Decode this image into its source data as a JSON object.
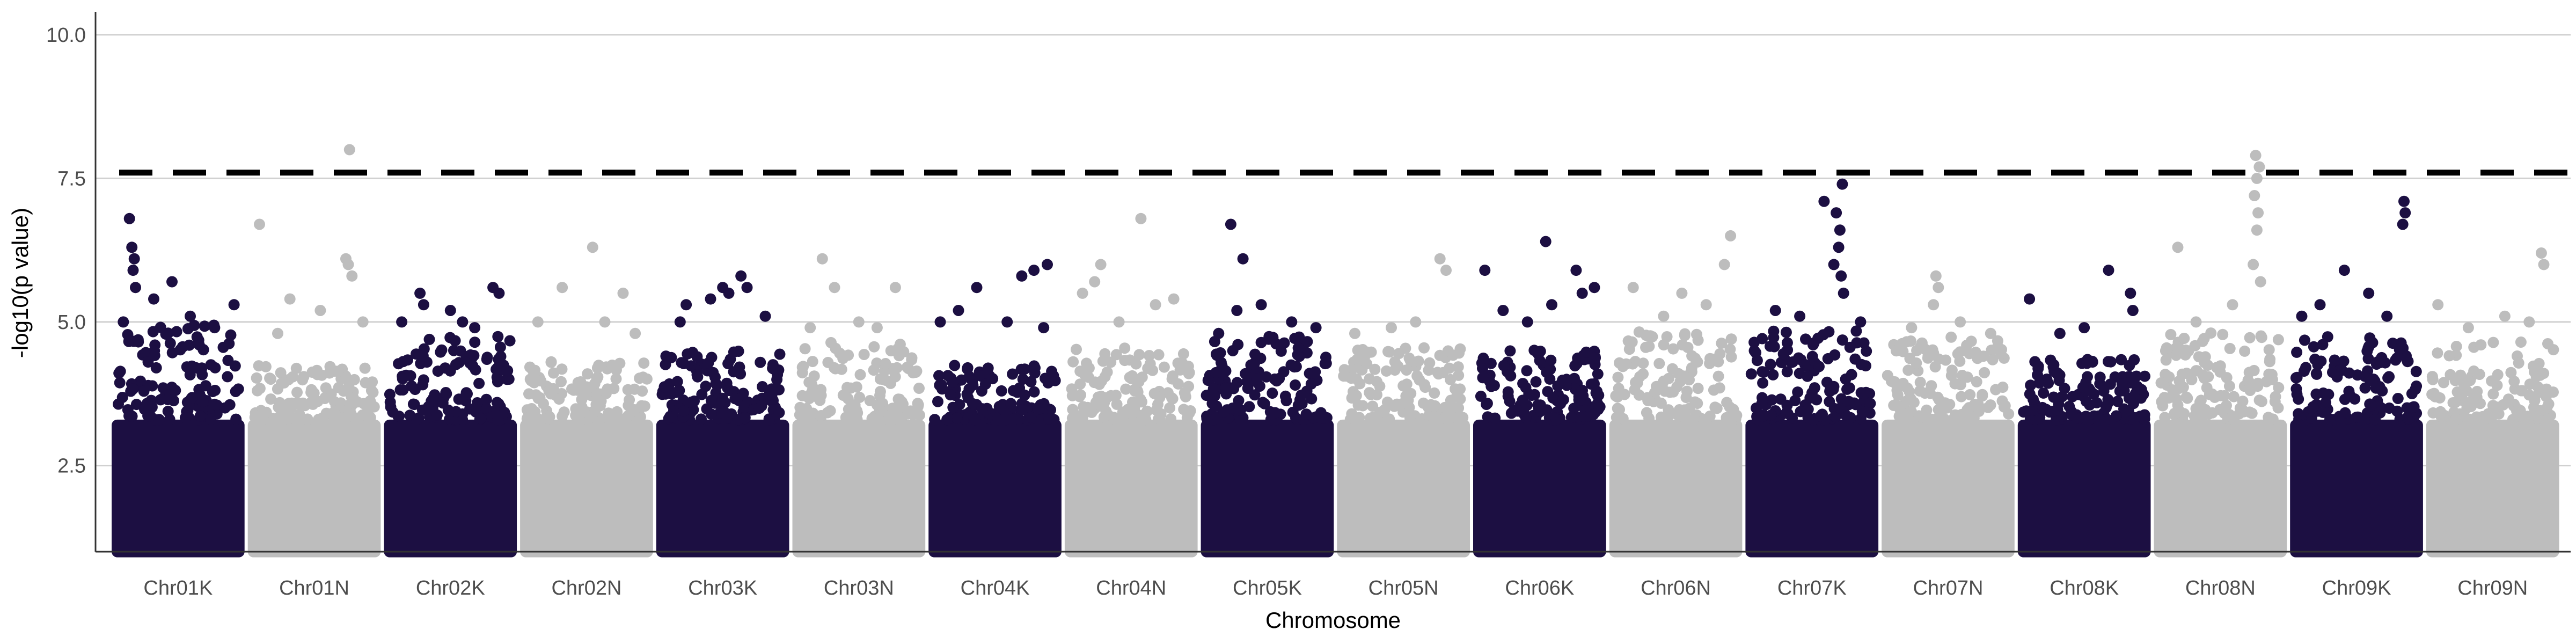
{
  "chart_data": {
    "type": "scatter",
    "subtype": "manhattan",
    "title": "",
    "xlabel": "Chromosome",
    "ylabel": "-log10(p value)",
    "ylim": [
      1.0,
      10.4
    ],
    "y_ticks": [
      2.5,
      5.0,
      7.5,
      10.0
    ],
    "y_tick_labels": [
      "2.5",
      "5.0",
      "7.5",
      "10.0"
    ],
    "grid": "horizontal major lines",
    "legend": "none",
    "colors": {
      "odd_chromosome": "#1c0f42",
      "even_chromosome": "#bdbdbd",
      "threshold": "#000000"
    },
    "threshold": 7.6,
    "threshold_style": "dashed",
    "categories": [
      "Chr01K",
      "Chr01N",
      "Chr02K",
      "Chr02N",
      "Chr03K",
      "Chr03N",
      "Chr04K",
      "Chr04N",
      "Chr05K",
      "Chr05N",
      "Chr06K",
      "Chr06N",
      "Chr07K",
      "Chr07N",
      "Chr08K",
      "Chr08N",
      "Chr09K",
      "Chr09N"
    ],
    "series": [
      {
        "category": "Chr01K",
        "color": "#1c0f42",
        "dense_top": 4.6,
        "points": [
          [
            0.1,
            6.8
          ],
          [
            0.12,
            6.3
          ],
          [
            0.14,
            6.1
          ],
          [
            0.13,
            5.9
          ],
          [
            0.15,
            5.6
          ],
          [
            0.45,
            5.7
          ],
          [
            0.3,
            5.4
          ],
          [
            0.96,
            5.3
          ],
          [
            0.6,
            5.1
          ],
          [
            0.05,
            5.0
          ],
          [
            0.8,
            4.9
          ]
        ]
      },
      {
        "category": "Chr01N",
        "color": "#bdbdbd",
        "dense_top": 3.9,
        "points": [
          [
            0.05,
            6.7
          ],
          [
            0.79,
            8.0
          ],
          [
            0.76,
            6.1
          ],
          [
            0.78,
            6.0
          ],
          [
            0.81,
            5.8
          ],
          [
            0.3,
            5.4
          ],
          [
            0.55,
            5.2
          ],
          [
            0.9,
            5.0
          ],
          [
            0.2,
            4.8
          ]
        ]
      },
      {
        "category": "Chr02K",
        "color": "#1c0f42",
        "dense_top": 4.4,
        "points": [
          [
            0.85,
            5.6
          ],
          [
            0.9,
            5.5
          ],
          [
            0.25,
            5.5
          ],
          [
            0.28,
            5.3
          ],
          [
            0.6,
            5.0
          ],
          [
            0.5,
            5.2
          ],
          [
            0.1,
            5.0
          ],
          [
            0.7,
            4.9
          ]
        ]
      },
      {
        "category": "Chr02N",
        "color": "#bdbdbd",
        "dense_top": 4.0,
        "points": [
          [
            0.55,
            6.3
          ],
          [
            0.3,
            5.6
          ],
          [
            0.8,
            5.5
          ],
          [
            0.1,
            5.0
          ],
          [
            0.65,
            5.0
          ],
          [
            0.9,
            4.8
          ]
        ]
      },
      {
        "category": "Chr03K",
        "color": "#1c0f42",
        "dense_top": 4.2,
        "points": [
          [
            0.65,
            5.8
          ],
          [
            0.7,
            5.6
          ],
          [
            0.5,
            5.6
          ],
          [
            0.55,
            5.5
          ],
          [
            0.4,
            5.4
          ],
          [
            0.2,
            5.3
          ],
          [
            0.85,
            5.1
          ],
          [
            0.15,
            5.0
          ]
        ]
      },
      {
        "category": "Chr03N",
        "color": "#bdbdbd",
        "dense_top": 4.3,
        "points": [
          [
            0.2,
            6.1
          ],
          [
            0.3,
            5.6
          ],
          [
            0.8,
            5.6
          ],
          [
            0.5,
            5.0
          ],
          [
            0.1,
            4.9
          ],
          [
            0.65,
            4.9
          ]
        ]
      },
      {
        "category": "Chr04K",
        "color": "#1c0f42",
        "dense_top": 3.9,
        "points": [
          [
            0.93,
            6.0
          ],
          [
            0.82,
            5.9
          ],
          [
            0.72,
            5.8
          ],
          [
            0.35,
            5.6
          ],
          [
            0.2,
            5.2
          ],
          [
            0.05,
            5.0
          ],
          [
            0.6,
            5.0
          ],
          [
            0.9,
            4.9
          ]
        ]
      },
      {
        "category": "Chr04N",
        "color": "#bdbdbd",
        "dense_top": 4.2,
        "points": [
          [
            0.58,
            6.8
          ],
          [
            0.25,
            6.0
          ],
          [
            0.2,
            5.7
          ],
          [
            0.1,
            5.5
          ],
          [
            0.7,
            5.3
          ],
          [
            0.85,
            5.4
          ],
          [
            0.4,
            5.0
          ]
        ]
      },
      {
        "category": "Chr05K",
        "color": "#1c0f42",
        "dense_top": 4.4,
        "points": [
          [
            0.2,
            6.7
          ],
          [
            0.3,
            6.1
          ],
          [
            0.45,
            5.3
          ],
          [
            0.25,
            5.2
          ],
          [
            0.7,
            5.0
          ],
          [
            0.9,
            4.9
          ],
          [
            0.1,
            4.8
          ]
        ]
      },
      {
        "category": "Chr05N",
        "color": "#bdbdbd",
        "dense_top": 4.2,
        "points": [
          [
            0.8,
            6.1
          ],
          [
            0.85,
            5.9
          ],
          [
            0.6,
            5.0
          ],
          [
            0.4,
            4.9
          ],
          [
            0.1,
            4.8
          ]
        ]
      },
      {
        "category": "Chr06K",
        "color": "#1c0f42",
        "dense_top": 4.2,
        "points": [
          [
            0.55,
            6.4
          ],
          [
            0.8,
            5.9
          ],
          [
            0.95,
            5.6
          ],
          [
            0.05,
            5.9
          ],
          [
            0.85,
            5.5
          ],
          [
            0.6,
            5.3
          ],
          [
            0.2,
            5.2
          ],
          [
            0.4,
            5.0
          ]
        ]
      },
      {
        "category": "Chr06N",
        "color": "#bdbdbd",
        "dense_top": 4.5,
        "points": [
          [
            0.95,
            6.5
          ],
          [
            0.9,
            6.0
          ],
          [
            0.15,
            5.6
          ],
          [
            0.55,
            5.5
          ],
          [
            0.75,
            5.3
          ],
          [
            0.4,
            5.1
          ]
        ]
      },
      {
        "category": "Chr07K",
        "color": "#1c0f42",
        "dense_top": 4.5,
        "points": [
          [
            0.75,
            7.4
          ],
          [
            0.6,
            7.1
          ],
          [
            0.7,
            6.9
          ],
          [
            0.73,
            6.6
          ],
          [
            0.72,
            6.3
          ],
          [
            0.68,
            6.0
          ],
          [
            0.74,
            5.8
          ],
          [
            0.76,
            5.5
          ],
          [
            0.2,
            5.2
          ],
          [
            0.4,
            5.1
          ],
          [
            0.9,
            5.0
          ]
        ]
      },
      {
        "category": "Chr07N",
        "color": "#bdbdbd",
        "dense_top": 4.4,
        "points": [
          [
            0.4,
            5.8
          ],
          [
            0.42,
            5.6
          ],
          [
            0.38,
            5.3
          ],
          [
            0.6,
            5.0
          ],
          [
            0.2,
            4.9
          ],
          [
            0.85,
            4.8
          ]
        ]
      },
      {
        "category": "Chr08K",
        "color": "#1c0f42",
        "dense_top": 4.0,
        "points": [
          [
            0.7,
            5.9
          ],
          [
            0.05,
            5.4
          ],
          [
            0.88,
            5.5
          ],
          [
            0.9,
            5.2
          ],
          [
            0.5,
            4.9
          ],
          [
            0.3,
            4.8
          ]
        ]
      },
      {
        "category": "Chr08N",
        "color": "#bdbdbd",
        "dense_top": 4.5,
        "points": [
          [
            0.79,
            7.9
          ],
          [
            0.82,
            7.7
          ],
          [
            0.8,
            7.5
          ],
          [
            0.78,
            7.2
          ],
          [
            0.81,
            6.9
          ],
          [
            0.8,
            6.6
          ],
          [
            0.15,
            6.3
          ],
          [
            0.77,
            6.0
          ],
          [
            0.83,
            5.7
          ],
          [
            0.6,
            5.3
          ],
          [
            0.3,
            5.0
          ]
        ]
      },
      {
        "category": "Chr09K",
        "color": "#1c0f42",
        "dense_top": 4.4,
        "points": [
          [
            0.89,
            7.1
          ],
          [
            0.9,
            6.9
          ],
          [
            0.88,
            6.7
          ],
          [
            0.4,
            5.9
          ],
          [
            0.6,
            5.5
          ],
          [
            0.2,
            5.3
          ],
          [
            0.75,
            5.1
          ],
          [
            0.05,
            5.1
          ]
        ]
      },
      {
        "category": "Chr09N",
        "color": "#bdbdbd",
        "dense_top": 4.3,
        "points": [
          [
            0.9,
            6.2
          ],
          [
            0.92,
            6.0
          ],
          [
            0.05,
            5.3
          ],
          [
            0.6,
            5.1
          ],
          [
            0.8,
            5.0
          ],
          [
            0.3,
            4.9
          ]
        ]
      }
    ]
  }
}
